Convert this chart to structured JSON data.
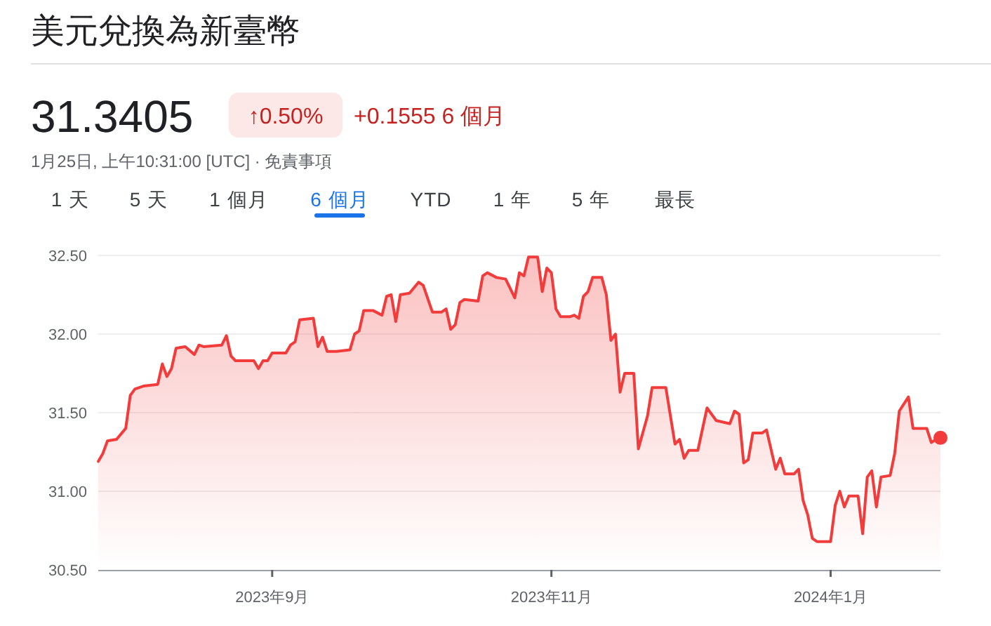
{
  "chart_data": {
    "type": "area",
    "title": "美元兌換為新臺幣",
    "subtitle": "31.3405",
    "annotations": [
      "↑0.50%",
      "+0.1555 6 個月",
      "1月25日, 上午10:31:00 [UTC] · 免責事項",
      "1 天",
      "5 天",
      "1 個月",
      "6 個月",
      "YTD",
      "1 年",
      "5 年",
      "最長"
    ],
    "xlim": [
      "2023-07-25",
      "2024-01-25"
    ],
    "xticks": [
      {
        "value": "2023-09-01",
        "label": "2023年9月"
      },
      {
        "value": "2023-11-01",
        "label": "2023年11月"
      },
      {
        "value": "2024-01-01",
        "label": "2024年1月"
      }
    ],
    "ylim": [
      30.5,
      32.5
    ],
    "yticks": [
      {
        "value": 30.5,
        "label": "30.50"
      },
      {
        "value": 31,
        "label": "31.00"
      },
      {
        "value": 31.5,
        "label": "31.50"
      },
      {
        "value": 32,
        "label": "32.00"
      },
      {
        "value": 32.5,
        "label": "32.50"
      }
    ],
    "grid": "y",
    "series": [
      {
        "color": "#f23c3c",
        "x": [
          "2023-07-25",
          "2023-07-26",
          "2023-07-27",
          "2023-07-29",
          "2023-07-31",
          "2023-08-01",
          "2023-08-02",
          "2023-08-04",
          "2023-08-07",
          "2023-08-08",
          "2023-08-09",
          "2023-08-10",
          "2023-08-11",
          "2023-08-13",
          "2023-08-15",
          "2023-08-16",
          "2023-08-17",
          "2023-08-21",
          "2023-08-22",
          "2023-08-23",
          "2023-08-24",
          "2023-08-28",
          "2023-08-29",
          "2023-08-30",
          "2023-08-31",
          "2023-09-01",
          "2023-09-04",
          "2023-09-05",
          "2023-09-06",
          "2023-09-07",
          "2023-09-10",
          "2023-09-11",
          "2023-09-12",
          "2023-09-13",
          "2023-09-15",
          "2023-09-18",
          "2023-09-19",
          "2023-09-20",
          "2023-09-21",
          "2023-09-23",
          "2023-09-25",
          "2023-09-26",
          "2023-09-27",
          "2023-09-28",
          "2023-09-29",
          "2023-10-01",
          "2023-10-03",
          "2023-10-04",
          "2023-10-06",
          "2023-10-08",
          "2023-10-09",
          "2023-10-10",
          "2023-10-11",
          "2023-10-12",
          "2023-10-13",
          "2023-10-16",
          "2023-10-17",
          "2023-10-18",
          "2023-10-20",
          "2023-10-22",
          "2023-10-24",
          "2023-10-25",
          "2023-10-26",
          "2023-10-27",
          "2023-10-29",
          "2023-10-30",
          "2023-10-31",
          "2023-11-01",
          "2023-11-02",
          "2023-11-03",
          "2023-11-05",
          "2023-11-06",
          "2023-11-07",
          "2023-11-08",
          "2023-11-09",
          "2023-11-10",
          "2023-11-12",
          "2023-11-13",
          "2023-11-14",
          "2023-11-15",
          "2023-11-16",
          "2023-11-17",
          "2023-11-19",
          "2023-11-20",
          "2023-11-22",
          "2023-11-23",
          "2023-11-26",
          "2023-11-28",
          "2023-11-29",
          "2023-11-30",
          "2023-12-01",
          "2023-12-03",
          "2023-12-05",
          "2023-12-07",
          "2023-12-10",
          "2023-12-11",
          "2023-12-12",
          "2023-12-13",
          "2023-12-14",
          "2023-12-15",
          "2023-12-17",
          "2023-12-18",
          "2023-12-20",
          "2023-12-21",
          "2023-12-22",
          "2023-12-24",
          "2023-12-25",
          "2023-12-26",
          "2023-12-27",
          "2023-12-28",
          "2023-12-29",
          "2024-01-01",
          "2024-01-02",
          "2024-01-03",
          "2024-01-04",
          "2024-01-05",
          "2024-01-07",
          "2024-01-08",
          "2024-01-09",
          "2024-01-10",
          "2024-01-11",
          "2024-01-12",
          "2024-01-14",
          "2024-01-15",
          "2024-01-16",
          "2024-01-18",
          "2024-01-19",
          "2024-01-22",
          "2024-01-23",
          "2024-01-24",
          "2024-01-25"
        ],
        "values": [
          31.19,
          31.24,
          31.32,
          31.33,
          31.4,
          31.61,
          31.65,
          31.67,
          31.68,
          31.81,
          31.73,
          31.78,
          31.91,
          31.92,
          31.87,
          31.93,
          31.92,
          31.93,
          31.99,
          31.86,
          31.83,
          31.83,
          31.78,
          31.83,
          31.83,
          31.88,
          31.88,
          31.93,
          31.95,
          32.09,
          32.1,
          31.92,
          31.98,
          31.89,
          31.89,
          31.9,
          32.0,
          32.02,
          32.15,
          32.15,
          32.12,
          32.24,
          32.25,
          32.08,
          32.25,
          32.26,
          32.33,
          32.31,
          32.14,
          32.14,
          32.16,
          32.03,
          32.06,
          32.2,
          32.22,
          32.21,
          32.37,
          32.39,
          32.36,
          32.35,
          32.23,
          32.39,
          32.37,
          32.49,
          32.49,
          32.27,
          32.42,
          32.39,
          32.16,
          32.11,
          32.11,
          32.12,
          32.1,
          32.24,
          32.27,
          32.36,
          32.36,
          32.25,
          31.96,
          32.0,
          31.63,
          31.75,
          31.75,
          31.27,
          31.48,
          31.66,
          31.66,
          31.3,
          31.33,
          31.21,
          31.26,
          31.26,
          31.53,
          31.45,
          31.43,
          31.51,
          31.49,
          31.18,
          31.2,
          31.37,
          31.37,
          31.39,
          31.14,
          31.21,
          31.11,
          31.11,
          31.14,
          30.94,
          30.85,
          30.7,
          30.68,
          30.68,
          30.91,
          31.0,
          30.9,
          30.97,
          30.97,
          30.73,
          31.09,
          31.13,
          30.9,
          31.09,
          31.1,
          31.24,
          31.51,
          31.6,
          31.4,
          31.4,
          31.31,
          31.33,
          31.34
        ]
      },
      {
        "type": "scatter",
        "marker": "circle",
        "color": "#f23c3c",
        "x": [
          "2024-01-25"
        ],
        "values": [
          31.34
        ]
      }
    ]
  }
}
